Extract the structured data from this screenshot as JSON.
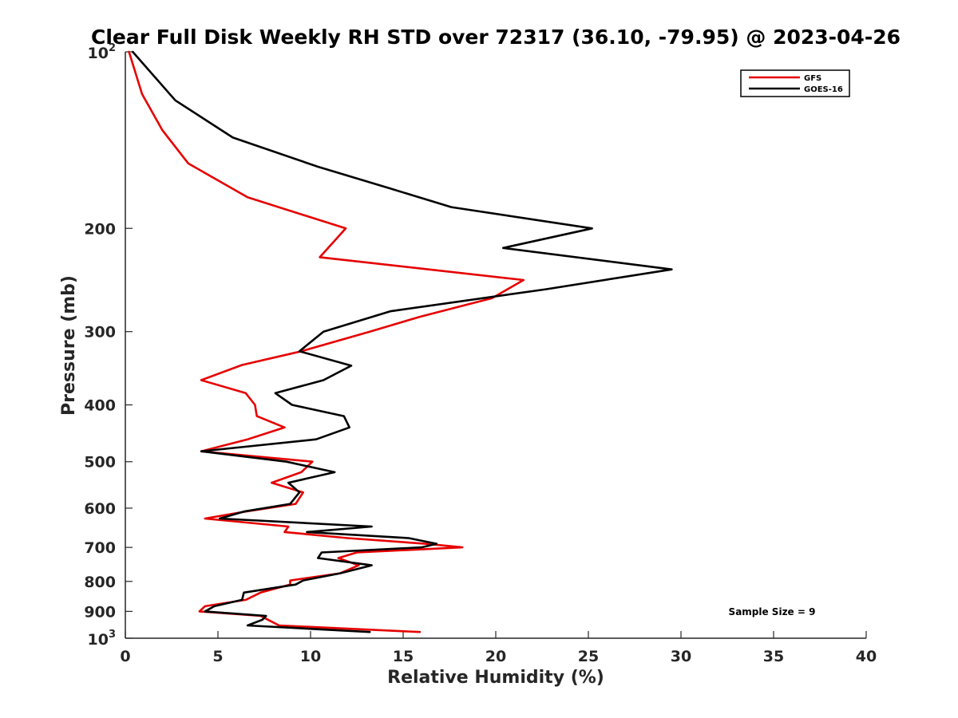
{
  "chart_data": {
    "type": "line",
    "title": "Clear Full Disk Weekly RH STD over 72317 (36.10, -79.95) @ 2023-04-26",
    "xlabel": "Relative Humidity (%)",
    "ylabel": "Pressure (mb)",
    "xlim": [
      0,
      40
    ],
    "ylim": [
      100,
      1000
    ],
    "y_scale": "log",
    "y_reversed": true,
    "grid": false,
    "legend_position": "top-right",
    "x_ticks": [
      "0",
      "5",
      "10",
      "15",
      "20",
      "25",
      "30",
      "35",
      "40"
    ],
    "y_ticks": [
      {
        "value": 100,
        "base": "10",
        "exp": "2"
      },
      {
        "value": 200,
        "label": "200"
      },
      {
        "value": 300,
        "label": "300"
      },
      {
        "value": 400,
        "label": "400"
      },
      {
        "value": 500,
        "label": "500"
      },
      {
        "value": 600,
        "label": "600"
      },
      {
        "value": 700,
        "label": "700"
      },
      {
        "value": 800,
        "label": "800"
      },
      {
        "value": 900,
        "label": "900"
      },
      {
        "value": 1000,
        "base": "10",
        "exp": "3"
      }
    ],
    "annotation": "Sample Size = 9",
    "series": [
      {
        "name": "GFS",
        "color": "#e60000",
        "points": [
          [
            0.2,
            100
          ],
          [
            0.9,
            118
          ],
          [
            2.0,
            136
          ],
          [
            3.4,
            155
          ],
          [
            6.6,
            177
          ],
          [
            11.9,
            200
          ],
          [
            10.5,
            224
          ],
          [
            21.5,
            245
          ],
          [
            19.8,
            263
          ],
          [
            15.9,
            283
          ],
          [
            13.2,
            300
          ],
          [
            9.5,
            324
          ],
          [
            6.3,
            342
          ],
          [
            4.1,
            363
          ],
          [
            6.5,
            382
          ],
          [
            7.0,
            400
          ],
          [
            7.1,
            418
          ],
          [
            8.6,
            437
          ],
          [
            6.6,
            458
          ],
          [
            4.1,
            480
          ],
          [
            10.1,
            500
          ],
          [
            9.5,
            521
          ],
          [
            7.9,
            543
          ],
          [
            9.6,
            564
          ],
          [
            9.2,
            590
          ],
          [
            6.5,
            608
          ],
          [
            4.3,
            625
          ],
          [
            8.8,
            645
          ],
          [
            8.6,
            659
          ],
          [
            12.0,
            675
          ],
          [
            16.2,
            690
          ],
          [
            18.2,
            700
          ],
          [
            12.5,
            714
          ],
          [
            11.5,
            730
          ],
          [
            12.6,
            751
          ],
          [
            11.6,
            775
          ],
          [
            8.9,
            797
          ],
          [
            8.9,
            810
          ],
          [
            7.3,
            836
          ],
          [
            6.5,
            860
          ],
          [
            4.3,
            882
          ],
          [
            4.0,
            900
          ],
          [
            7.3,
            916
          ],
          [
            7.7,
            930
          ],
          [
            8.3,
            951
          ],
          [
            15.9,
            976
          ]
        ]
      },
      {
        "name": "GOES-16",
        "color": "#000000",
        "points": [
          [
            0.4,
            100
          ],
          [
            2.7,
            121
          ],
          [
            5.8,
            140
          ],
          [
            10.4,
            157
          ],
          [
            14.3,
            171
          ],
          [
            17.6,
            184
          ],
          [
            25.2,
            200
          ],
          [
            20.4,
            216
          ],
          [
            29.5,
            235
          ],
          [
            22.7,
            254
          ],
          [
            14.3,
            277
          ],
          [
            10.7,
            300
          ],
          [
            9.4,
            324
          ],
          [
            12.2,
            343
          ],
          [
            10.7,
            363
          ],
          [
            8.1,
            382
          ],
          [
            9.0,
            400
          ],
          [
            11.8,
            418
          ],
          [
            12.1,
            437
          ],
          [
            10.3,
            458
          ],
          [
            4.1,
            480
          ],
          [
            8.7,
            500
          ],
          [
            11.3,
            521
          ],
          [
            8.8,
            543
          ],
          [
            9.4,
            564
          ],
          [
            8.9,
            590
          ],
          [
            6.4,
            608
          ],
          [
            5.1,
            625
          ],
          [
            13.3,
            645
          ],
          [
            9.8,
            659
          ],
          [
            15.3,
            675
          ],
          [
            16.8,
            690
          ],
          [
            16.0,
            700
          ],
          [
            10.6,
            714
          ],
          [
            10.4,
            730
          ],
          [
            13.3,
            751
          ],
          [
            11.6,
            775
          ],
          [
            9.6,
            797
          ],
          [
            9.2,
            810
          ],
          [
            6.4,
            836
          ],
          [
            6.3,
            860
          ],
          [
            4.8,
            882
          ],
          [
            4.3,
            900
          ],
          [
            7.6,
            916
          ],
          [
            7.4,
            930
          ],
          [
            6.6,
            951
          ],
          [
            13.2,
            976
          ]
        ]
      }
    ]
  }
}
